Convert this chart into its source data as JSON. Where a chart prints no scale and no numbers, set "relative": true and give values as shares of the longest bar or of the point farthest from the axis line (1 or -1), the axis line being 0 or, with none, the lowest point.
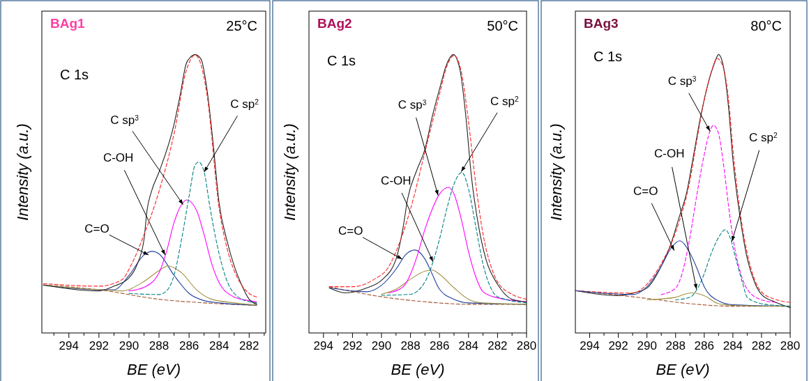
{
  "chart_data": [
    {
      "type": "line",
      "relative": true,
      "title": "BAg1",
      "xlabel": "BE (eV)",
      "ylabel": "Intensity (a.u.)",
      "xlim": [
        295.8,
        280.9
      ],
      "xticks": [
        {
          "value": 295,
          "label": null
        },
        294,
        {
          "value": 293,
          "label": null
        },
        292,
        {
          "value": 291,
          "label": null
        },
        290,
        {
          "value": 289,
          "label": null
        },
        288,
        {
          "value": 287,
          "label": null
        },
        286,
        {
          "value": 285,
          "label": null
        },
        284,
        {
          "value": 283,
          "label": null
        },
        282,
        {
          "value": 281,
          "label": null
        }
      ],
      "annotations": [
        "25°C",
        "C 1s",
        {
          "text": "C sp$^{3}$",
          "x": 286.4,
          "y": 0.461
        },
        {
          "text": "C sp$^{2}$",
          "x": 285,
          "y": 0.578
        },
        {
          "text": "C-OH",
          "x": 287.6,
          "y": 0.28
        },
        {
          "text": "C=O",
          "x": 288.7,
          "y": 0.28
        }
      ],
      "series": [
        {
          "color": "#a0522d",
          "line_style": "dashed",
          "x": [
            295.7,
            292,
            288,
            285,
            281.5
          ],
          "values": [
            0.172,
            0.155,
            0.121,
            0.108,
            0.099
          ]
        },
        {
          "color": "#2040a0",
          "line_style": "solid",
          "x": [
            295.7,
            292,
            291,
            290,
            289,
            288.45,
            288,
            287,
            286,
            285,
            284,
            281.5
          ],
          "values": [
            0.172,
            0.155,
            0.155,
            0.207,
            0.28,
            0.293,
            0.284,
            0.207,
            0.142,
            0.116,
            0.108,
            0.1
          ]
        },
        {
          "color": "#a09040",
          "line_style": "solid",
          "x": [
            295.7,
            292,
            290.5,
            289,
            288,
            287.4,
            286.5,
            285.5,
            284.5,
            283,
            281.5
          ],
          "values": [
            0.172,
            0.155,
            0.151,
            0.185,
            0.224,
            0.241,
            0.216,
            0.155,
            0.121,
            0.108,
            0.1
          ]
        },
        {
          "color": "#ff00ff",
          "line_style": "solid",
          "x": [
            290,
            289,
            288,
            287.5,
            287,
            286.5,
            286.16,
            285.5,
            285,
            284.5,
            284,
            283,
            282,
            281.5
          ],
          "values": [
            0.151,
            0.164,
            0.216,
            0.293,
            0.397,
            0.461,
            0.478,
            0.44,
            0.353,
            0.25,
            0.181,
            0.129,
            0.116,
            0.112
          ]
        },
        {
          "color": "#008080",
          "line_style": "dashed",
          "x": [
            290,
            288,
            287.5,
            287,
            286.5,
            286,
            285.6,
            285.36,
            285,
            284.6,
            284,
            283.5,
            283,
            282,
            281.5
          ],
          "values": [
            0.142,
            0.138,
            0.151,
            0.207,
            0.336,
            0.491,
            0.603,
            0.614,
            0.578,
            0.448,
            0.284,
            0.19,
            0.142,
            0.112,
            0.108
          ]
        },
        {
          "color": "#222222",
          "line_style": "solid",
          "x": [
            295.7,
            292,
            291,
            290,
            289.5,
            289,
            288.8,
            288.5,
            288,
            287,
            286.6,
            286.2,
            285.9,
            285.6,
            285.2,
            284.8,
            284.4,
            284,
            283.5,
            283,
            282.5,
            282,
            281.5
          ],
          "values": [
            0.172,
            0.151,
            0.168,
            0.198,
            0.241,
            0.336,
            0.44,
            0.509,
            0.578,
            0.75,
            0.853,
            0.966,
            0.991,
            1,
            0.983,
            0.871,
            0.681,
            0.466,
            0.336,
            0.241,
            0.172,
            0.121,
            0.103
          ]
        },
        {
          "color": "#ff2020",
          "line_style": "dashed",
          "x": [
            295.7,
            292,
            290.5,
            289.8,
            289,
            288,
            287,
            286.2,
            285.6,
            285.3,
            284.8,
            284,
            283.5,
            283,
            282.5,
            282,
            281.5
          ],
          "values": [
            0.177,
            0.168,
            0.19,
            0.25,
            0.353,
            0.509,
            0.716,
            0.94,
            0.998,
            0.978,
            0.853,
            0.448,
            0.31,
            0.224,
            0.172,
            0.142,
            0.129
          ]
        }
      ]
    },
    {
      "type": "line",
      "relative": true,
      "title": "BAg2",
      "xlabel": "BE (eV)",
      "ylabel": "Intensity (a.u.)",
      "xlim": [
        295,
        280
      ],
      "xticks": [
        294,
        {
          "value": 293,
          "label": null
        },
        292,
        {
          "value": 291,
          "label": null
        },
        290,
        {
          "value": 289,
          "label": null
        },
        288,
        {
          "value": 287,
          "label": null
        },
        286,
        {
          "value": 285,
          "label": null
        },
        284,
        {
          "value": 283,
          "label": null
        },
        282,
        {
          "value": 281,
          "label": null
        },
        280
      ],
      "annotations": [
        "50°C",
        "C 1s",
        {
          "text": "C sp$^{3}$",
          "x": 286.1,
          "y": 0.494
        },
        {
          "text": "C sp$^{2}$",
          "x": 284.5,
          "y": 0.579
        },
        {
          "text": "C-OH",
          "x": 286.45,
          "y": 0.256
        },
        {
          "text": "C=O",
          "x": 288.57,
          "y": 0.265
        }
      ],
      "series": [
        {
          "color": "#a0522d",
          "line_style": "dashed",
          "x": [
            293.6,
            290,
            287,
            284,
            280
          ],
          "values": [
            0.166,
            0.13,
            0.112,
            0.103,
            0.103
          ]
        },
        {
          "color": "#2040a0",
          "line_style": "solid",
          "x": [
            293.6,
            291,
            290,
            289,
            288.3,
            287.7,
            287,
            286.5,
            286,
            285,
            284,
            280
          ],
          "values": [
            0.162,
            0.148,
            0.171,
            0.229,
            0.283,
            0.298,
            0.265,
            0.211,
            0.157,
            0.121,
            0.108,
            0.103
          ]
        },
        {
          "color": "#a09040",
          "line_style": "solid",
          "x": [
            290,
            289,
            288,
            287,
            286.5,
            286,
            285,
            284,
            283,
            280
          ],
          "values": [
            0.139,
            0.157,
            0.193,
            0.222,
            0.226,
            0.211,
            0.162,
            0.121,
            0.108,
            0.103
          ]
        },
        {
          "color": "#ff00ff",
          "line_style": "solid",
          "x": [
            289.5,
            288.5,
            288,
            287.5,
            287,
            286.5,
            286,
            285.37,
            285,
            284.5,
            284,
            283.5,
            283,
            282,
            280
          ],
          "values": [
            0.144,
            0.166,
            0.211,
            0.283,
            0.373,
            0.445,
            0.499,
            0.523,
            0.499,
            0.409,
            0.292,
            0.202,
            0.148,
            0.126,
            0.112
          ]
        },
        {
          "color": "#008080",
          "line_style": "dashed",
          "x": [
            290,
            288,
            287,
            286.5,
            286,
            285.5,
            285,
            284.46,
            284,
            283.5,
            283,
            282.5,
            282,
            280
          ],
          "values": [
            0.135,
            0.139,
            0.184,
            0.247,
            0.337,
            0.445,
            0.535,
            0.577,
            0.517,
            0.382,
            0.247,
            0.166,
            0.13,
            0.108
          ]
        },
        {
          "color": "#222222",
          "line_style": "solid",
          "x": [
            293.6,
            292.5,
            291,
            290,
            289,
            288.5,
            288.2,
            287.6,
            287,
            286.5,
            286,
            285.5,
            285.05,
            284.6,
            284.2,
            283.8,
            283.3,
            282.8,
            282,
            281,
            280
          ],
          "values": [
            0.162,
            0.144,
            0.162,
            0.189,
            0.265,
            0.382,
            0.481,
            0.58,
            0.661,
            0.777,
            0.876,
            0.966,
            1,
            0.948,
            0.786,
            0.562,
            0.382,
            0.265,
            0.175,
            0.121,
            0.112
          ]
        },
        {
          "color": "#ff2020",
          "line_style": "dashed",
          "x": [
            293.6,
            292,
            290.5,
            289.5,
            289,
            288,
            287,
            286,
            285.5,
            285,
            284.5,
            284,
            283.5,
            283,
            282.5,
            282,
            281,
            280
          ],
          "values": [
            0.166,
            0.166,
            0.193,
            0.238,
            0.292,
            0.445,
            0.651,
            0.858,
            0.957,
            0.997,
            0.939,
            0.759,
            0.535,
            0.355,
            0.247,
            0.184,
            0.139,
            0.121
          ]
        }
      ]
    },
    {
      "type": "line",
      "relative": true,
      "title": "BAg3",
      "xlabel": "BE (eV)",
      "ylabel": "Intensity (a.u.)",
      "xlim": [
        295,
        280
      ],
      "xticks": [
        294,
        {
          "value": 293,
          "label": null
        },
        292,
        {
          "value": 291,
          "label": null
        },
        290,
        {
          "value": 289,
          "label": null
        },
        288,
        {
          "value": 287,
          "label": null
        },
        286,
        {
          "value": 285,
          "label": null
        },
        284,
        {
          "value": 283,
          "label": null
        },
        282,
        {
          "value": 281,
          "label": null
        },
        280
      ],
      "annotations": [
        "80°C",
        "C 1s",
        {
          "text": "C sp$^{3}$",
          "x": 285.6,
          "y": 0.725
        },
        {
          "text": "C sp$^{2}$",
          "x": 284.07,
          "y": 0.329
        },
        {
          "text": "C-OH",
          "x": 286.54,
          "y": 0.157
        },
        {
          "text": "C=O",
          "x": 288.1,
          "y": 0.296
        }
      ],
      "series": [
        {
          "color": "#222222",
          "line_style": "solid",
          "x": [
            295,
            292,
            291,
            290,
            289,
            288.3,
            287.8,
            287.2,
            286.8,
            286.2,
            285.7,
            285.3,
            285,
            284.7,
            284.3,
            284,
            283.5,
            283,
            282.5,
            282,
            281,
            280
          ],
          "values": [
            0.152,
            0.134,
            0.143,
            0.161,
            0.24,
            0.324,
            0.408,
            0.511,
            0.623,
            0.791,
            0.902,
            0.967,
            1,
            0.967,
            0.809,
            0.623,
            0.417,
            0.268,
            0.184,
            0.138,
            0.11,
            0.091
          ]
        },
        {
          "color": "#ff2020",
          "line_style": "dashed",
          "x": [
            295,
            291,
            290,
            289,
            288,
            287,
            286.5,
            286,
            285.5,
            285.1,
            284.7,
            284.3,
            284,
            283.5,
            283,
            282.5,
            282,
            281,
            280
          ],
          "values": [
            0.152,
            0.143,
            0.175,
            0.249,
            0.362,
            0.548,
            0.697,
            0.837,
            0.939,
            0.986,
            0.958,
            0.837,
            0.66,
            0.436,
            0.287,
            0.194,
            0.147,
            0.12,
            0.11
          ]
        },
        {
          "color": "#a0522d",
          "line_style": "dashed",
          "x": [
            295,
            290,
            287,
            284,
            280
          ],
          "values": [
            0.152,
            0.124,
            0.105,
            0.096,
            0.096
          ]
        },
        {
          "color": "#2040a0",
          "line_style": "solid",
          "x": [
            295,
            291,
            290,
            289,
            288.3,
            287.72,
            287,
            286.5,
            286,
            285,
            284,
            280
          ],
          "values": [
            0.152,
            0.138,
            0.166,
            0.24,
            0.306,
            0.331,
            0.287,
            0.231,
            0.166,
            0.115,
            0.101,
            0.096
          ]
        },
        {
          "color": "#a09040",
          "line_style": "solid",
          "x": [
            290,
            288,
            287.3,
            286.85,
            286,
            285,
            284,
            280
          ],
          "values": [
            0.119,
            0.128,
            0.14,
            0.144,
            0.134,
            0.105,
            0.099,
            0.096
          ]
        },
        {
          "color": "#ff00ff",
          "line_style": "dashed",
          "x": [
            289,
            288,
            287.5,
            287,
            286.5,
            286,
            285.6,
            285.36,
            285,
            284.7,
            284.3,
            284,
            283.5,
            283,
            282,
            281
          ],
          "values": [
            0.138,
            0.161,
            0.222,
            0.343,
            0.501,
            0.641,
            0.725,
            0.746,
            0.716,
            0.623,
            0.455,
            0.343,
            0.222,
            0.157,
            0.119,
            0.11
          ]
        },
        {
          "color": "#008080",
          "line_style": "dashed",
          "x": [
            288,
            287,
            286.5,
            286,
            285.5,
            285,
            284.52,
            284.2,
            283.8,
            283.3,
            283,
            282,
            281,
            280
          ],
          "values": [
            0.119,
            0.128,
            0.157,
            0.213,
            0.287,
            0.343,
            0.371,
            0.343,
            0.268,
            0.175,
            0.128,
            0.105,
            0.099,
            0.096
          ]
        }
      ]
    }
  ]
}
